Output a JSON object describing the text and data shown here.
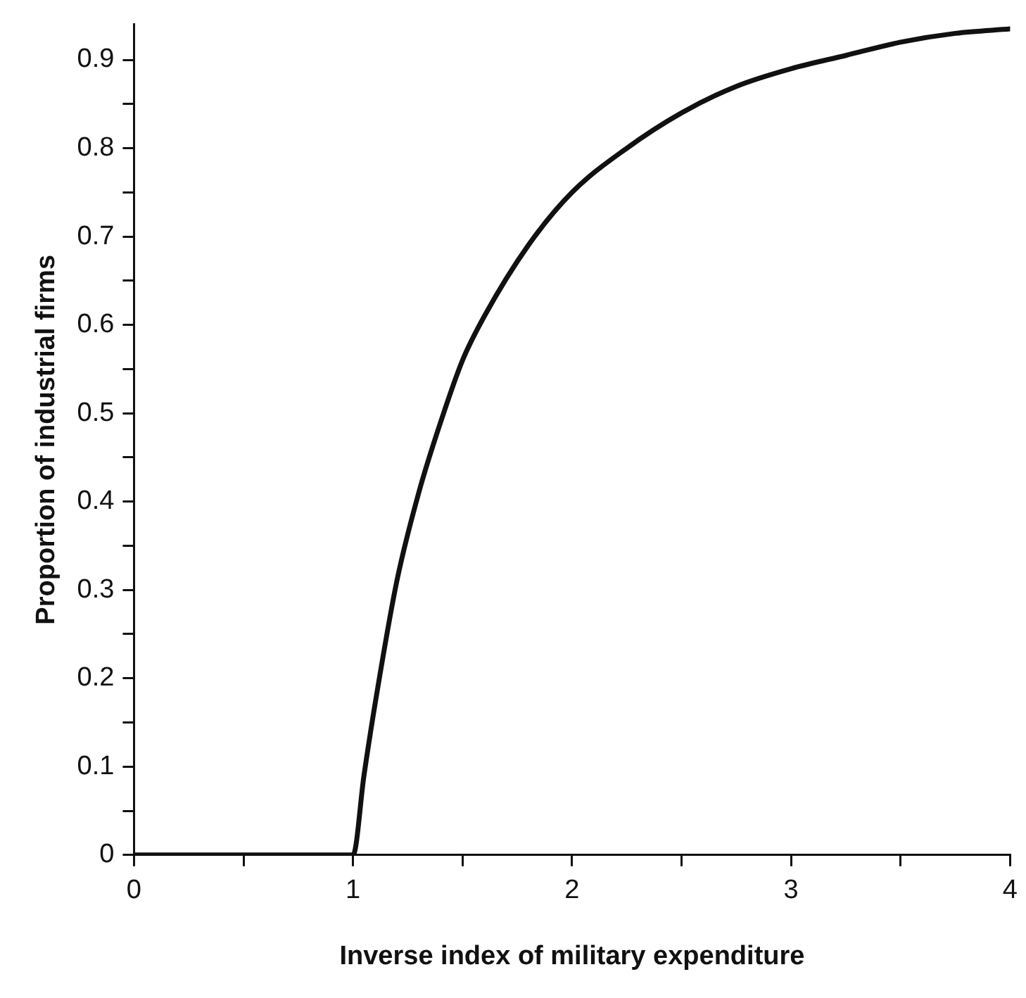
{
  "chart_data": {
    "type": "line",
    "xlabel": "Inverse index of military expenditure",
    "ylabel": "Proportion of industrial firms",
    "x": [
      0,
      1,
      1.05,
      1.1,
      1.2,
      1.3,
      1.4,
      1.5,
      1.6,
      1.8,
      2,
      2.25,
      2.5,
      2.75,
      3,
      3.25,
      3.5,
      3.75,
      4
    ],
    "series": [
      {
        "color": "#111111",
        "values": [
          0,
          0,
          0.09,
          0.17,
          0.31,
          0.41,
          0.49,
          0.56,
          0.61,
          0.69,
          0.75,
          0.8,
          0.84,
          0.87,
          0.89,
          0.905,
          0.92,
          0.93,
          0.935
        ]
      }
    ],
    "xlim": [
      0,
      4
    ],
    "xticks": [
      0,
      {
        "value": 0.5,
        "label": null
      },
      1,
      {
        "value": 1.5,
        "label": null
      },
      2,
      {
        "value": 2.5,
        "label": null
      },
      3,
      {
        "value": 3.5,
        "label": null
      },
      4
    ],
    "ylim": [
      0,
      0.94
    ],
    "yticks": [
      0,
      {
        "value": 0.05,
        "label": null
      },
      0.1,
      {
        "value": 0.15,
        "label": null
      },
      0.2,
      {
        "value": 0.25,
        "label": null
      },
      0.3,
      {
        "value": 0.35,
        "label": null
      },
      0.4,
      {
        "value": 0.45,
        "label": null
      },
      0.5,
      {
        "value": 0.55,
        "label": null
      },
      0.6,
      {
        "value": 0.65,
        "label": null
      },
      0.7,
      {
        "value": 0.75,
        "label": null
      },
      0.8,
      {
        "value": 0.85,
        "label": null
      },
      0.9
    ],
    "marker": "none",
    "line_style": "solid",
    "legend": false
  }
}
